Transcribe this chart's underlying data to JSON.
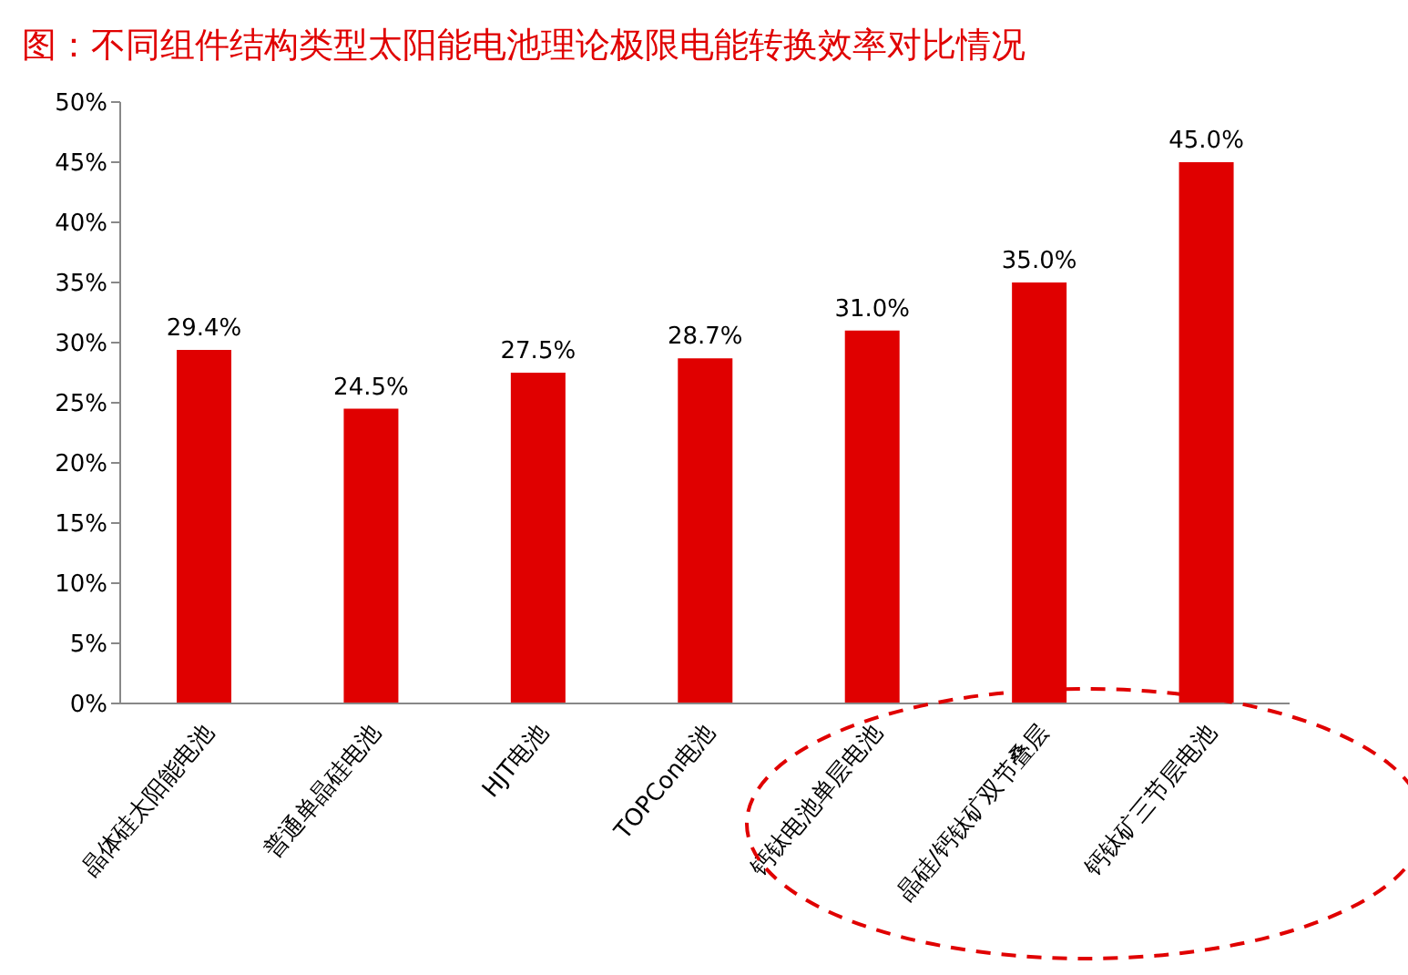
{
  "chart_data": {
    "type": "bar",
    "title": "图：不同组件结构类型太阳能电池理论极限电能转换效率对比情况",
    "categories": [
      "晶体硅太阳能电池",
      "普通单晶硅电池",
      "HJT电池",
      "TOPCon电池",
      "钙钛电池单层电池",
      "晶硅/钙钛矿双节叠层",
      "钙钛矿三节层电池"
    ],
    "values": [
      29.4,
      24.5,
      27.5,
      28.7,
      31.0,
      35.0,
      45.0
    ],
    "value_labels": [
      "29.4%",
      "24.5%",
      "27.5%",
      "28.7%",
      "31.0%",
      "35.0%",
      "45.0%"
    ],
    "color": "#e00000",
    "ylim": [
      0,
      50
    ],
    "yticks": [
      {
        "value": 0,
        "label": "0%"
      },
      {
        "value": 5,
        "label": "5%"
      },
      {
        "value": 10,
        "label": "10%"
      },
      {
        "value": 15,
        "label": "15%"
      },
      {
        "value": 20,
        "label": "20%"
      },
      {
        "value": 25,
        "label": "25%"
      },
      {
        "value": 30,
        "label": "30%"
      },
      {
        "value": 35,
        "label": "35%"
      },
      {
        "value": 40,
        "label": "40%"
      },
      {
        "value": 45,
        "label": "45%"
      },
      {
        "value": 50,
        "label": "50%"
      }
    ],
    "grid": false,
    "legend": false
  }
}
